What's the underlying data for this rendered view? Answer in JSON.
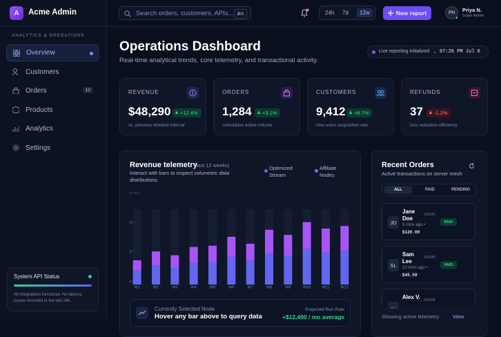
{
  "sidebar": {
    "logo": "A",
    "brand": "Acme Admin",
    "section": "ANALYTICS & OPERATIONS",
    "nav": [
      {
        "label": "Overview"
      },
      {
        "label": "Customers"
      },
      {
        "label": "Orders",
        "badge": 12
      },
      {
        "label": "Products"
      },
      {
        "label": "Analytics"
      },
      {
        "label": "Settings"
      }
    ],
    "status": {
      "title": "System API Status",
      "text": "All integrations functional. No latency issues recorded in the last 24h."
    }
  },
  "topbar": {
    "search": "Search orders, customers, APIs...",
    "shortcut": "⌘K",
    "ranges": [
      "24h",
      "7d",
      "12w"
    ],
    "button": "New report",
    "user": {
      "initials": "PN",
      "name": "Priya N.",
      "role": "Super Admin"
    }
  },
  "header": {
    "title": "Operations Dashboard",
    "subtitle": "Real-time analytical trends, core telemetry, and transactional activity.",
    "status": "Live reporting initialized",
    "time": "07:26 PM Jul 6"
  },
  "kpis": [
    {
      "label": "REVENUE",
      "value": "$48,290",
      "change": "+12.4%",
      "note": "vs. previous timeline interval"
    },
    {
      "label": "ORDERS",
      "value": "1,284",
      "change": "+3.1%",
      "note": "cumulative active volume"
    },
    {
      "label": "CUSTOMERS",
      "value": "9,412",
      "change": "+8.7%",
      "note": "new users acquisition rate"
    },
    {
      "label": "REFUNDS",
      "value": "37",
      "change": "-1.2%",
      "note": "loss reduction efficiency"
    }
  ],
  "chart_data": {
    "type": "bar",
    "stacked": true,
    "title": "Revenue telemetry",
    "subtitle": "(last 12 weeks)",
    "description": "Interact with bars to inspect volumetric data distributions.",
    "categories": [
      "W1",
      "W2",
      "W3",
      "W4",
      "W5",
      "W6",
      "W7",
      "W8",
      "W9",
      "W10",
      "W11",
      "W12"
    ],
    "series": [
      {
        "name": "Optimized Stream",
        "color": "#6366f1",
        "values": [
          22,
          30,
          26,
          34,
          35,
          43,
          37,
          49,
          45,
          56,
          50,
          53
        ]
      },
      {
        "name": "Affiliate Nodes",
        "color": "#a855f7",
        "values": [
          16,
          22,
          20,
          25,
          26,
          32,
          27,
          37,
          33,
          42,
          38,
          39
        ]
      }
    ],
    "ylim": [
      0,
      140
    ],
    "yticks": [
      {
        "value": 0,
        "label": "$0"
      },
      {
        "value": 47,
        "label": "$47k"
      },
      {
        "value": 93,
        "label": "$93k"
      },
      {
        "value": 140,
        "label": "$140k"
      }
    ],
    "grid": true
  },
  "selection": {
    "label": "Currently Selected Node",
    "text": "Hover any bar above to query data",
    "rate_label": "Projected Run Rate",
    "rate": "+$12,400 / mo average"
  },
  "orders": {
    "title": "Recent Orders",
    "subtitle": "Active transactions on server mesh",
    "tabs": [
      "ALL",
      "PAID",
      "PENDING"
    ],
    "items": [
      {
        "initials": "JD",
        "name": "Jane Doe",
        "id": "#10241",
        "time": "5 mins ago •",
        "amount": "$120.00",
        "status": "PAID"
      },
      {
        "initials": "SL",
        "name": "Sam Lee",
        "id": "#10240",
        "time": "12 mins ago •",
        "amount": "$45.50",
        "status": "PAID"
      },
      {
        "initials": "AV",
        "name": "Alex V.",
        "id": "#10239"
      }
    ],
    "footer": "Showing active telemetry",
    "link": "View"
  }
}
